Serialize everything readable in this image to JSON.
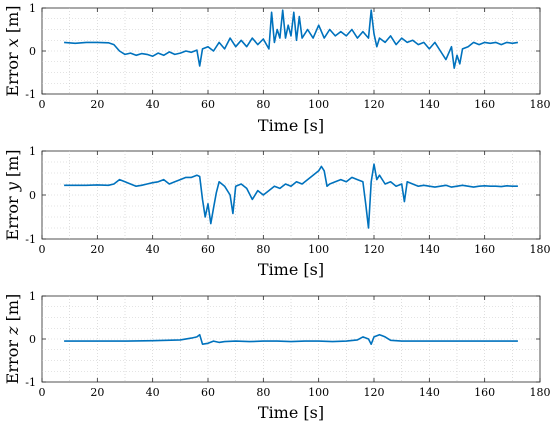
{
  "figure": {
    "background": "#ffffff",
    "line_color": "#0072BD"
  },
  "chart_data": [
    {
      "type": "line",
      "title": "",
      "xlabel": "Time [s]",
      "ylabel_prefix": "Error ",
      "ylabel_var": "x",
      "ylabel_suffix": " [m]",
      "xlim": [
        0,
        180
      ],
      "ylim": [
        -1,
        1
      ],
      "xticks": [
        0,
        20,
        40,
        60,
        80,
        100,
        120,
        140,
        160,
        180
      ],
      "yticks": [
        -1,
        0,
        1
      ],
      "grid": "dotted",
      "series": [
        {
          "color": "#0072BD",
          "x": [
            8,
            12,
            16,
            20,
            24,
            26,
            28,
            30,
            32,
            34,
            36,
            38,
            40,
            42,
            44,
            46,
            48,
            50,
            52,
            54,
            56,
            57,
            58,
            60,
            62,
            64,
            66,
            68,
            70,
            72,
            74,
            76,
            78,
            80,
            82,
            83,
            84,
            85,
            86,
            87,
            88,
            89,
            90,
            91,
            92,
            93,
            94,
            96,
            98,
            100,
            102,
            104,
            106,
            108,
            110,
            112,
            114,
            116,
            118,
            119,
            120,
            121,
            122,
            124,
            126,
            128,
            130,
            132,
            134,
            136,
            138,
            140,
            142,
            144,
            146,
            148,
            149,
            150,
            151,
            152,
            154,
            156,
            158,
            160,
            162,
            164,
            166,
            168,
            170,
            172
          ],
          "y": [
            0.2,
            0.18,
            0.2,
            0.2,
            0.19,
            0.15,
            0.0,
            -0.08,
            -0.05,
            -0.1,
            -0.06,
            -0.08,
            -0.12,
            -0.05,
            -0.1,
            -0.02,
            -0.08,
            -0.05,
            0.0,
            -0.03,
            0.02,
            -0.35,
            0.05,
            0.1,
            0.0,
            0.2,
            0.05,
            0.3,
            0.1,
            0.25,
            0.1,
            0.3,
            0.15,
            0.28,
            0.05,
            0.9,
            0.2,
            0.5,
            0.3,
            0.95,
            0.3,
            0.6,
            0.35,
            0.9,
            0.25,
            0.8,
            0.3,
            0.5,
            0.3,
            0.6,
            0.3,
            0.5,
            0.35,
            0.45,
            0.35,
            0.5,
            0.3,
            0.45,
            0.3,
            0.95,
            0.4,
            0.1,
            0.3,
            0.2,
            0.35,
            0.15,
            0.3,
            0.2,
            0.25,
            0.15,
            0.2,
            0.05,
            0.2,
            0.0,
            -0.2,
            0.1,
            -0.4,
            -0.1,
            -0.3,
            0.05,
            0.1,
            0.2,
            0.15,
            0.2,
            0.18,
            0.2,
            0.15,
            0.2,
            0.18,
            0.2
          ]
        }
      ]
    },
    {
      "type": "line",
      "title": "",
      "xlabel": "Time [s]",
      "ylabel_prefix": "Error ",
      "ylabel_var": "y",
      "ylabel_suffix": " [m]",
      "xlim": [
        0,
        180
      ],
      "ylim": [
        -1,
        1
      ],
      "xticks": [
        0,
        20,
        40,
        60,
        80,
        100,
        120,
        140,
        160,
        180
      ],
      "yticks": [
        -1,
        0,
        1
      ],
      "grid": "dotted",
      "series": [
        {
          "color": "#0072BD",
          "x": [
            8,
            12,
            16,
            20,
            24,
            26,
            28,
            30,
            32,
            34,
            36,
            38,
            40,
            42,
            44,
            46,
            48,
            50,
            52,
            54,
            56,
            57,
            58,
            59,
            60,
            61,
            62,
            63,
            64,
            66,
            68,
            69,
            70,
            72,
            74,
            76,
            78,
            80,
            82,
            84,
            86,
            88,
            90,
            92,
            94,
            96,
            98,
            100,
            101,
            102,
            103,
            104,
            106,
            108,
            110,
            112,
            114,
            116,
            117,
            118,
            119,
            120,
            121,
            122,
            124,
            126,
            128,
            130,
            131,
            132,
            134,
            136,
            138,
            140,
            142,
            144,
            146,
            148,
            150,
            152,
            154,
            156,
            158,
            160,
            162,
            164,
            166,
            168,
            170,
            172
          ],
          "y": [
            0.22,
            0.22,
            0.22,
            0.23,
            0.22,
            0.25,
            0.35,
            0.3,
            0.25,
            0.2,
            0.22,
            0.25,
            0.28,
            0.3,
            0.35,
            0.25,
            0.3,
            0.35,
            0.4,
            0.4,
            0.45,
            0.42,
            -0.1,
            -0.5,
            -0.2,
            -0.65,
            -0.3,
            0.05,
            0.3,
            0.2,
            0.0,
            -0.42,
            0.2,
            0.25,
            0.15,
            -0.1,
            0.1,
            0.0,
            0.1,
            0.2,
            0.15,
            0.25,
            0.2,
            0.3,
            0.25,
            0.35,
            0.45,
            0.55,
            0.65,
            0.55,
            0.2,
            0.25,
            0.3,
            0.35,
            0.3,
            0.4,
            0.35,
            0.3,
            -0.2,
            -0.75,
            0.3,
            0.7,
            0.35,
            0.45,
            0.25,
            0.3,
            0.2,
            0.25,
            -0.15,
            0.3,
            0.25,
            0.2,
            0.22,
            0.2,
            0.18,
            0.2,
            0.22,
            0.18,
            0.2,
            0.22,
            0.2,
            0.18,
            0.2,
            0.21,
            0.2,
            0.2,
            0.19,
            0.21,
            0.2,
            0.2
          ]
        }
      ]
    },
    {
      "type": "line",
      "title": "",
      "xlabel": "Time [s]",
      "ylabel_prefix": "Error ",
      "ylabel_var": "z",
      "ylabel_suffix": " [m]",
      "xlim": [
        0,
        180
      ],
      "ylim": [
        -1,
        1
      ],
      "xticks": [
        0,
        20,
        40,
        60,
        80,
        100,
        120,
        140,
        160,
        180
      ],
      "yticks": [
        -1,
        0,
        1
      ],
      "grid": "dotted",
      "series": [
        {
          "color": "#0072BD",
          "x": [
            8,
            20,
            30,
            40,
            45,
            50,
            54,
            56,
            57,
            58,
            60,
            62,
            64,
            66,
            70,
            75,
            80,
            85,
            90,
            95,
            100,
            105,
            110,
            114,
            116,
            118,
            119,
            120,
            122,
            124,
            126,
            130,
            140,
            150,
            160,
            172
          ],
          "y": [
            -0.05,
            -0.05,
            -0.05,
            -0.04,
            -0.03,
            -0.02,
            0.02,
            0.05,
            0.1,
            -0.12,
            -0.1,
            -0.05,
            -0.08,
            -0.06,
            -0.05,
            -0.06,
            -0.05,
            -0.05,
            -0.06,
            -0.05,
            -0.05,
            -0.06,
            -0.05,
            -0.02,
            0.05,
            0.0,
            -0.12,
            0.05,
            0.1,
            0.05,
            -0.03,
            -0.05,
            -0.05,
            -0.05,
            -0.05,
            -0.05
          ]
        }
      ]
    }
  ]
}
